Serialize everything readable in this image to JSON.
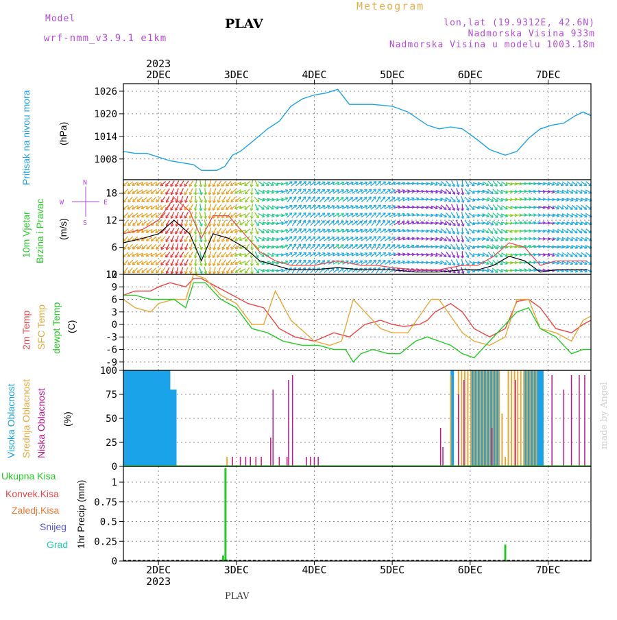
{
  "header": {
    "model_label": "Model",
    "model_name": "wrf-nmm_v3.9.1 e1km",
    "station": "PLAV",
    "meteogram": "Meteogram",
    "lonlat": "lon,lat (19.9312E, 42.6N)",
    "elev": "Nadmorska Visina 933m",
    "elev_model": "Nadmorska Visina u modelu 1003.18m",
    "year": "2023",
    "bottom_station": "PLAV",
    "made_by": "made by Angel"
  },
  "colors": {
    "pressure": "#1aa3e8",
    "temp2m": "#ee4444",
    "sfc": "#e8a838",
    "dewpt": "#22cc22",
    "high": "#1aa3e8",
    "mid": "#e8a838",
    "low": "#c0168c",
    "total": "#22cc22",
    "snow": "#5555dd",
    "hail": "#22ccaa",
    "purple": "#b24bdc"
  },
  "axes": {
    "dates": [
      "2DEC",
      "3DEC",
      "4DEC",
      "5DEC",
      "6DEC",
      "7DEC"
    ],
    "year_label": "2023"
  },
  "panel_labels": {
    "pressure": [
      "Pritisak na nivou mora",
      "(hPa)"
    ],
    "wind": [
      "10m Vjetar",
      "Brzina i Pravac",
      "(m/s)"
    ],
    "temp": [
      "2m Temp",
      "SFC Temp",
      "dewpt Temp",
      "(C)"
    ],
    "cloud": [
      "Visoka Oblacnost",
      "Srednja Oblacnost",
      "Niska Oblacnost",
      "(%)"
    ],
    "precip_unit": "1hr Precip (mm)",
    "precip_legend": [
      "Ukupna Kisa",
      "Konvek.Kisa",
      "Zaledj.Kisa",
      "Snijeg",
      "Grad"
    ],
    "compass": {
      "n": "N",
      "s": "S",
      "w": "W",
      "e": "E"
    }
  },
  "chart_data": [
    {
      "type": "line",
      "name": "pressure",
      "x_unit": "days since 2DEC 00UTC",
      "xlim": [
        -0.45,
        5.55
      ],
      "ylim": [
        1002.5,
        1028
      ],
      "yticks": [
        1008,
        1014,
        1020,
        1026
      ],
      "x": [
        -0.45,
        -0.3,
        -0.15,
        0,
        0.15,
        0.3,
        0.45,
        0.55,
        0.75,
        0.85,
        0.95,
        1.05,
        1.2,
        1.4,
        1.55,
        1.7,
        1.85,
        2.0,
        2.15,
        2.3,
        2.45,
        2.6,
        2.75,
        3.0,
        3.2,
        3.45,
        3.6,
        3.75,
        3.9,
        4.1,
        4.25,
        4.45,
        4.6,
        4.75,
        4.9,
        5.05,
        5.2,
        5.35,
        5.45,
        5.55
      ],
      "y": [
        1010,
        1009.5,
        1009.5,
        1008.5,
        1007.5,
        1007,
        1006.5,
        1005,
        1005,
        1006,
        1009,
        1010,
        1012.5,
        1016,
        1018,
        1022,
        1024,
        1025,
        1025.5,
        1026.5,
        1022.5,
        1022.5,
        1022.5,
        1022,
        1020.5,
        1017,
        1016,
        1016.5,
        1016,
        1013,
        1010.5,
        1009,
        1010,
        1013.5,
        1016,
        1017,
        1017.5,
        1019.5,
        1020.5,
        1019.5
      ]
    },
    {
      "type": "line",
      "name": "temperature",
      "x_unit": "days since 2DEC 00UTC",
      "xlim": [
        -0.45,
        5.55
      ],
      "ylim": [
        -11,
        12
      ],
      "yticks": [
        -9,
        -6,
        -3,
        0,
        3,
        6,
        9,
        12
      ],
      "series": [
        {
          "name": "2m Temp",
          "x": [
            -0.45,
            -0.3,
            -0.1,
            0,
            0.15,
            0.35,
            0.45,
            0.55,
            0.75,
            0.95,
            1.15,
            1.35,
            1.55,
            1.75,
            2.0,
            2.25,
            2.45,
            2.65,
            2.85,
            3.0,
            3.15,
            3.35,
            3.45,
            3.55,
            3.75,
            3.9,
            4.05,
            4.25,
            4.45,
            4.6,
            4.75,
            4.9,
            5.1,
            5.3,
            5.45,
            5.55
          ],
          "y": [
            7,
            8,
            8,
            9,
            10,
            9,
            11,
            11,
            9,
            7,
            5,
            4,
            -1,
            -3,
            -4,
            -2,
            -3,
            0,
            1,
            0,
            -0.5,
            0,
            1,
            3,
            5,
            3,
            -1,
            -3,
            -1,
            5.5,
            6,
            4,
            -1,
            -2,
            0,
            1
          ]
        },
        {
          "name": "SFC Temp",
          "x": [
            -0.45,
            -0.3,
            -0.1,
            0,
            0.2,
            0.35,
            0.45,
            0.6,
            0.8,
            1.0,
            1.2,
            1.35,
            1.5,
            1.7,
            2.0,
            2.2,
            2.35,
            2.5,
            2.65,
            2.85,
            3.0,
            3.2,
            3.35,
            3.5,
            3.6,
            3.75,
            3.9,
            4.05,
            4.25,
            4.45,
            4.6,
            4.75,
            4.9,
            5.1,
            5.3,
            5.45,
            5.55
          ],
          "y": [
            6,
            4,
            3,
            5,
            6,
            6,
            12,
            11,
            7,
            5,
            0,
            0,
            8,
            1,
            -4,
            -5,
            -4,
            6,
            3,
            -1,
            -2,
            -2,
            2,
            6,
            6,
            2,
            -2,
            -4,
            -5,
            -3,
            6,
            6,
            -1,
            -2,
            -4,
            1,
            2
          ]
        },
        {
          "name": "dewpt Temp",
          "x": [
            -0.45,
            -0.3,
            -0.1,
            0,
            0.2,
            0.35,
            0.45,
            0.6,
            0.8,
            1.0,
            1.2,
            1.4,
            1.6,
            1.85,
            2.05,
            2.25,
            2.4,
            2.5,
            2.6,
            2.75,
            2.95,
            3.1,
            3.3,
            3.45,
            3.6,
            3.75,
            3.9,
            4.05,
            4.25,
            4.45,
            4.6,
            4.75,
            4.9,
            5.1,
            5.3,
            5.45,
            5.55
          ],
          "y": [
            7,
            7,
            6,
            6,
            6,
            4,
            10,
            10,
            6,
            4,
            -1,
            -2,
            -4,
            -5,
            -5,
            -6,
            -6,
            -9,
            -7,
            -6,
            -7,
            -7,
            -4,
            -3,
            -4,
            -5,
            -7,
            -8,
            -4,
            0,
            3,
            4,
            -1,
            -3,
            -7,
            -6,
            -6
          ]
        }
      ]
    },
    {
      "type": "bar",
      "name": "cloud cover",
      "x_unit": "days since 2DEC 00UTC",
      "xlim": [
        -0.45,
        5.55
      ],
      "ylim": [
        0,
        100
      ],
      "yticks": [
        0,
        25,
        50,
        75,
        100
      ],
      "series": [
        {
          "name": "Visoka Oblacnost",
          "x": [
            -0.43,
            -0.39,
            -0.35,
            -0.31,
            -0.27,
            -0.23,
            -0.19,
            -0.15,
            -0.11,
            -0.07,
            -0.03,
            0.01,
            0.05,
            0.09,
            0.13,
            0.17,
            0.21,
            3.77,
            4.04,
            4.08,
            4.12,
            4.16,
            4.2,
            4.24,
            4.28,
            4.32,
            4.36,
            4.72,
            4.76,
            4.8,
            4.84,
            4.88,
            4.92
          ],
          "y": [
            100,
            100,
            100,
            100,
            100,
            100,
            100,
            100,
            100,
            100,
            100,
            100,
            100,
            100,
            100,
            80,
            80,
            100,
            100,
            100,
            100,
            100,
            100,
            100,
            100,
            100,
            100,
            100,
            100,
            100,
            100,
            100,
            100
          ]
        },
        {
          "name": "Srednja Oblacnost",
          "x": [
            0.88,
            3.75,
            3.85,
            3.89,
            3.93,
            3.97,
            4.01,
            4.05,
            4.09,
            4.13,
            4.17,
            4.21,
            4.25,
            4.29,
            4.33,
            4.37,
            4.41,
            4.45,
            4.49,
            4.53,
            4.57,
            4.61,
            4.65,
            4.69,
            4.73,
            4.77,
            4.81,
            4.85
          ],
          "y": [
            10,
            95,
            100,
            100,
            100,
            100,
            100,
            100,
            100,
            100,
            100,
            100,
            100,
            100,
            100,
            100,
            55,
            10,
            100,
            100,
            100,
            100,
            100,
            100,
            100,
            100,
            100,
            100
          ]
        },
        {
          "name": "Niska Oblacnost",
          "x": [
            0.95,
            1.05,
            1.12,
            1.18,
            1.25,
            1.32,
            1.44,
            1.47,
            1.55,
            1.65,
            1.67,
            1.72,
            1.9,
            1.95,
            2.0,
            2.05,
            3.62,
            3.65,
            3.85,
            3.92,
            4.28,
            4.58,
            5.05,
            5.2,
            5.3,
            5.4,
            5.47
          ],
          "y": [
            10,
            10,
            10,
            10,
            10,
            10,
            30,
            80,
            10,
            10,
            90,
            95,
            10,
            10,
            10,
            10,
            40,
            20,
            75,
            90,
            40,
            90,
            95,
            80,
            95,
            95,
            95
          ]
        }
      ]
    },
    {
      "type": "bar",
      "name": "hourly precipitation",
      "x_unit": "days since 2DEC 00UTC",
      "xlim": [
        -0.45,
        5.55
      ],
      "ylim": [
        0,
        1.2
      ],
      "yticks": [
        0,
        0.25,
        0.5,
        0.75,
        1
      ],
      "series": [
        {
          "name": "Ukupna Kisa",
          "x": [
            0.83,
            0.86,
            0.88,
            2.1,
            2.14,
            4.45
          ],
          "y": [
            0.07,
            1.18,
            0.02,
            0.01,
            0.01,
            0.21
          ]
        }
      ]
    },
    {
      "type": "scatter",
      "name": "10m wind speed and direction",
      "x_unit": "days since 2DEC 00UTC",
      "xlim": [
        -0.45,
        5.55
      ],
      "ylim": [
        0,
        21
      ],
      "yticks": [
        0,
        6,
        12,
        18
      ],
      "speed_series": {
        "name": "wind speed",
        "x": [
          -0.45,
          -0.2,
          0,
          0.2,
          0.4,
          0.55,
          0.7,
          0.9,
          1.1,
          1.3,
          1.5,
          1.7,
          2.0,
          2.3,
          2.6,
          2.8,
          3.0,
          3.3,
          3.6,
          3.9,
          4.1,
          4.3,
          4.5,
          4.7,
          4.9,
          5.1,
          5.3,
          5.5
        ],
        "y": [
          7,
          8,
          9,
          12,
          9,
          3,
          9,
          8,
          6,
          3,
          2,
          1,
          1,
          1.5,
          1,
          1,
          1,
          0.5,
          0.5,
          1,
          1,
          2,
          4,
          3,
          0.5,
          1,
          1,
          1
        ]
      },
      "max_series": {
        "name": "gust",
        "x": [
          -0.45,
          -0.2,
          0,
          0.2,
          0.4,
          0.55,
          0.7,
          0.9,
          1.1,
          1.3,
          1.5,
          1.7,
          2.0,
          2.3,
          2.6,
          2.8,
          3.0,
          3.3,
          3.6,
          3.9,
          4.1,
          4.3,
          4.5,
          4.7,
          4.9,
          5.1,
          5.3,
          5.5
        ],
        "y": [
          9,
          10,
          12,
          17,
          14,
          8,
          13,
          13,
          9,
          5,
          3,
          2,
          2,
          3,
          2,
          2,
          1.5,
          1,
          1,
          2,
          2,
          4,
          7,
          6,
          2,
          3,
          3,
          3
        ]
      },
      "direction_deg": [
        220,
        240,
        230,
        200,
        210,
        160,
        200,
        220,
        250,
        120,
        110,
        40,
        50,
        60,
        60,
        40,
        60,
        80,
        110,
        170,
        90,
        140,
        100,
        80,
        90,
        110,
        120,
        120
      ]
    }
  ]
}
